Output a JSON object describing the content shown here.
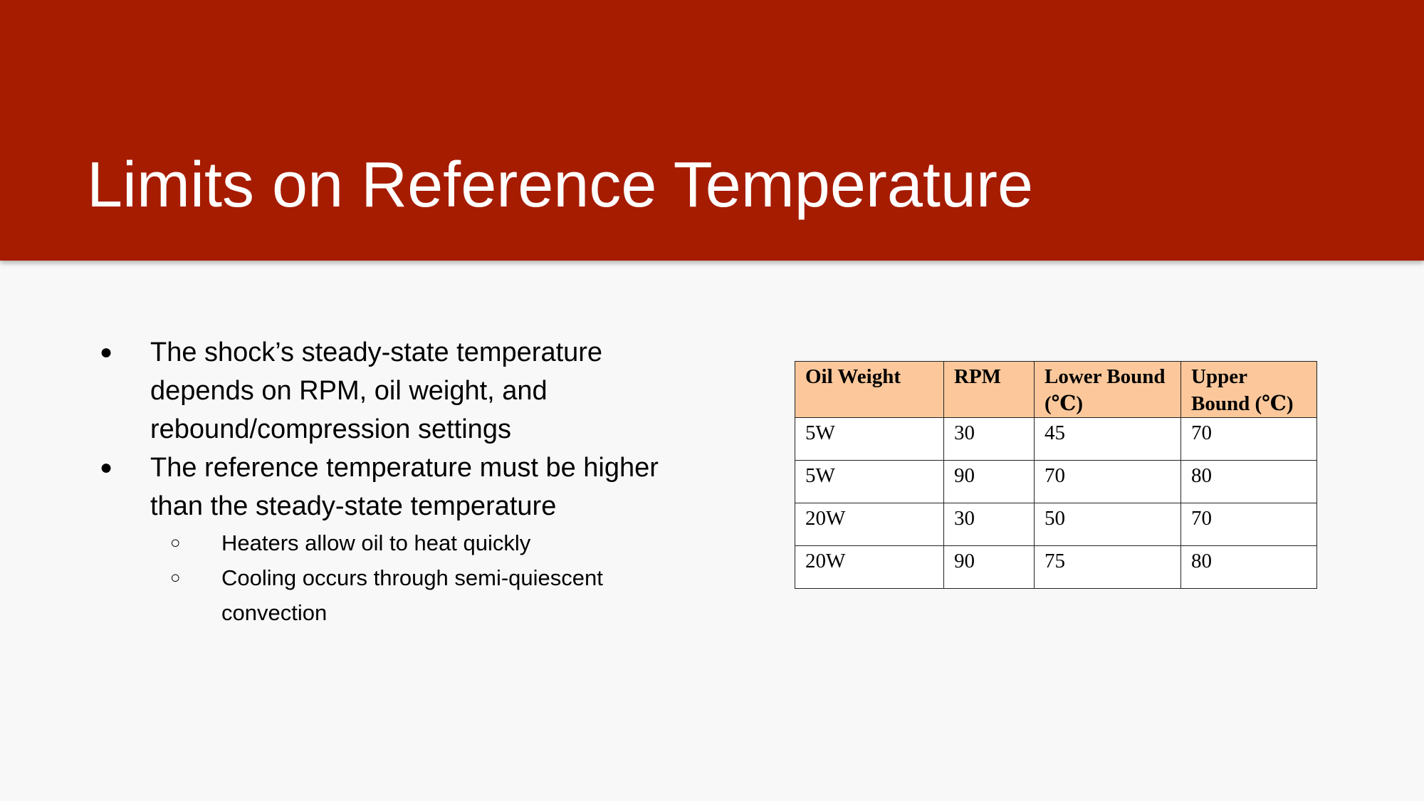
{
  "slide": {
    "title": "Limits on Reference Temperature",
    "colors": {
      "header_background": "#a61c00",
      "slide_background": "#f8f8f8",
      "table_header_background": "#fcc89b"
    }
  },
  "bullets": [
    {
      "text": "The shock’s steady-state temperature depends on RPM, oil weight, and rebound/compression settings"
    },
    {
      "text": "The reference temperature must be higher than the steady-state temperature",
      "sub_bullets": [
        "Heaters allow oil to heat quickly",
        "Cooling occurs through semi-quiescent convection"
      ]
    }
  ],
  "table": {
    "headers": [
      "Oil Weight",
      "RPM",
      "Lower Bound (℃)",
      "Upper Bound (℃)"
    ],
    "rows": [
      [
        "5W",
        "30",
        "45",
        "70"
      ],
      [
        "5W",
        "90",
        "70",
        "80"
      ],
      [
        "20W",
        "30",
        "50",
        "70"
      ],
      [
        "20W",
        "90",
        "75",
        "80"
      ]
    ]
  }
}
